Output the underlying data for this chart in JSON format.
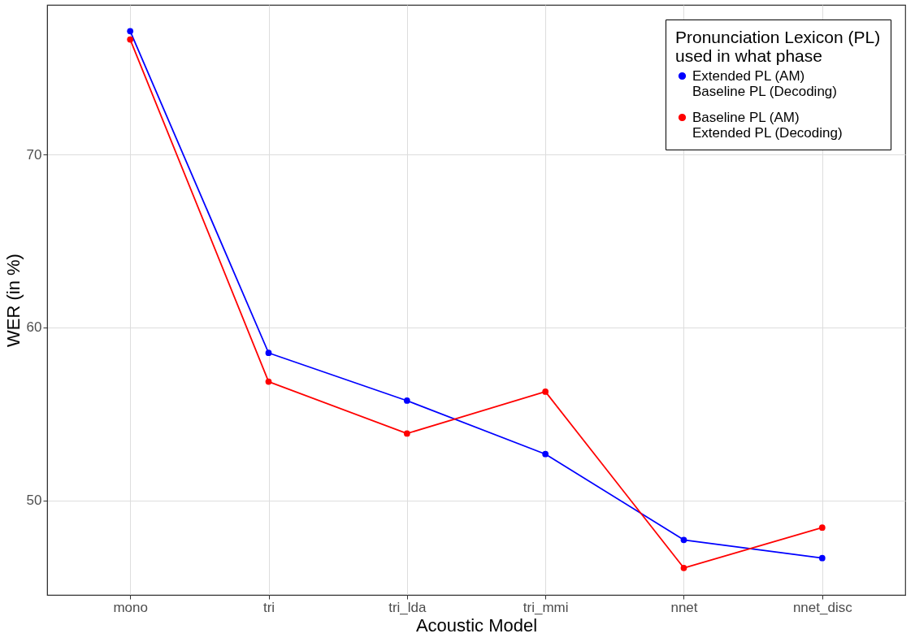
{
  "chart_data": {
    "type": "line",
    "xlabel": "Acoustic Model",
    "ylabel": "WER (in %)",
    "legend_title": "Pronunciation Lexicon (PL)\nused in what phase",
    "categories": [
      "mono",
      "tri",
      "tri_lda",
      "tri_mmi",
      "nnet",
      "nnet_disc"
    ],
    "series": [
      {
        "name": "Extended PL (AM)\nBaseline PL (Decoding)",
        "color": "#0000ff",
        "values": [
          77.13,
          58.53,
          55.77,
          52.68,
          47.72,
          46.67
        ]
      },
      {
        "name": "Baseline PL (AM)\nExtended PL (Decoding)",
        "color": "#ff0000",
        "values": [
          76.65,
          56.87,
          53.87,
          56.29,
          46.1,
          48.43
        ]
      }
    ],
    "ylim": [
      44.54,
      78.65
    ],
    "yticks": [
      50,
      60,
      70
    ],
    "grid": true,
    "legend": "top right",
    "marker": "circle",
    "line_style": "solid"
  }
}
